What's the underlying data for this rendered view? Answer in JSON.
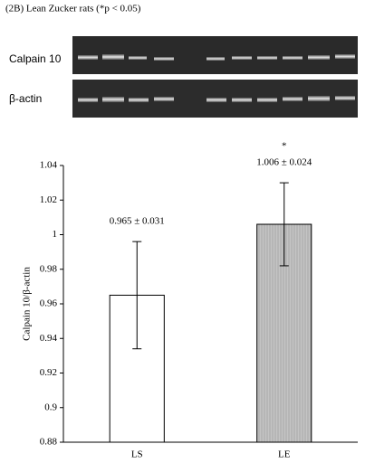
{
  "header": {
    "title": "(2B) Lean Zucker rats (*p < 0.05)"
  },
  "gel": {
    "rows": [
      "Calpain 10",
      "β-actin"
    ]
  },
  "chart_data": {
    "type": "bar",
    "ylabel": "Calpain 10/β-actin",
    "categories": [
      "LS",
      "LE"
    ],
    "values": [
      0.965,
      1.006
    ],
    "errors": [
      0.031,
      0.024
    ],
    "value_labels": [
      "0.965 ± 0.031",
      "1.006 ± 0.024"
    ],
    "annotations": [
      "",
      "*"
    ],
    "colors": [
      "#ffffff",
      "#c4c4c4"
    ],
    "hatch": [
      false,
      true
    ],
    "ylim": [
      0.88,
      1.04
    ],
    "yticks": [
      0.88,
      0.9,
      0.92,
      0.94,
      0.96,
      0.98,
      1,
      1.02,
      1.04
    ],
    "grid": false
  }
}
